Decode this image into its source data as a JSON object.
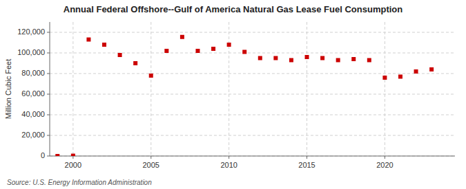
{
  "chart_data": {
    "type": "scatter",
    "title": "Annual Federal Offshore--Gulf of America Natural Gas Lease Fuel Consumption",
    "ylabel": "Million Cubic Feet",
    "source": "Source: U.S. Energy Information Administration",
    "x": [
      1999,
      2000,
      2001,
      2002,
      2003,
      2004,
      2005,
      2006,
      2007,
      2008,
      2009,
      2010,
      2011,
      2012,
      2013,
      2014,
      2015,
      2016,
      2017,
      2018,
      2019,
      2020,
      2021,
      2022,
      2023
    ],
    "values": [
      0,
      300,
      113000,
      108000,
      98000,
      90000,
      78000,
      102000,
      115500,
      102000,
      104000,
      108000,
      101000,
      95000,
      95000,
      93000,
      96000,
      95000,
      93000,
      94000,
      93000,
      76000,
      77000,
      82000,
      84000
    ],
    "color": "#cc0000",
    "marker": "square",
    "xlim": [
      1998.5,
      2024.5
    ],
    "xticks": [
      2000,
      2005,
      2010,
      2015,
      2020
    ],
    "ylim": [
      0,
      130000
    ],
    "yticks": [
      0,
      {
        "value": 20000,
        "label": "20,000"
      },
      {
        "value": 40000,
        "label": "40,000"
      },
      {
        "value": 60000,
        "label": "60,000"
      },
      {
        "value": 80000,
        "label": "80,000"
      },
      {
        "value": 100000,
        "label": "100,000"
      },
      {
        "value": 120000,
        "label": "120,000"
      }
    ],
    "grid": true
  }
}
